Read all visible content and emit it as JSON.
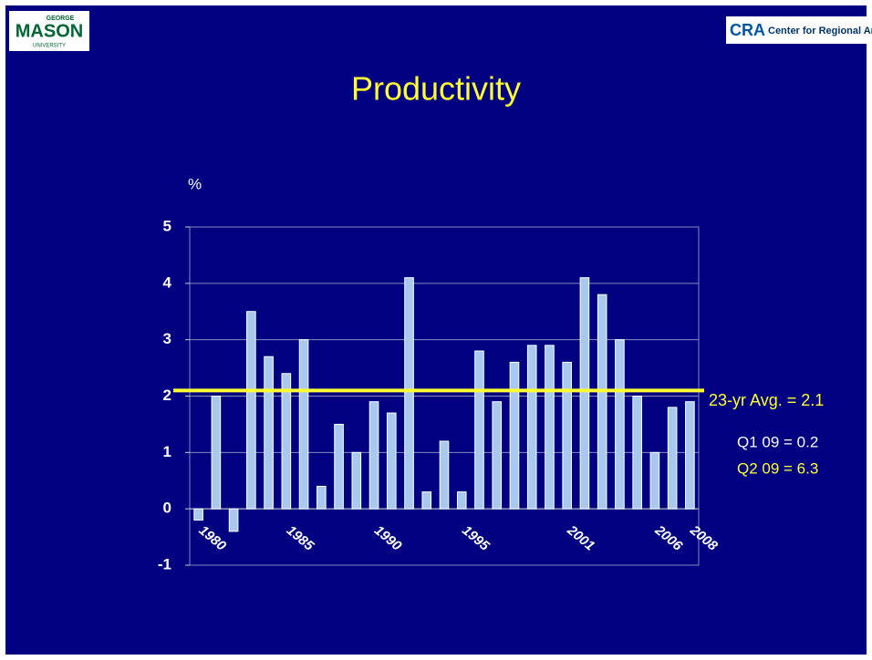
{
  "logos": {
    "left": {
      "top": "GEORGE",
      "main": "MASON",
      "bottom": "UNIVERSITY"
    },
    "right": {
      "mark": "CRA",
      "text": "Center for Regional Analy"
    }
  },
  "chart_data": {
    "type": "bar",
    "title": "Productivity",
    "y_label": "%",
    "categories": [
      "1980",
      null,
      null,
      null,
      null,
      "1985",
      null,
      null,
      null,
      null,
      "1990",
      null,
      null,
      null,
      null,
      "1995",
      null,
      null,
      null,
      null,
      null,
      "2001",
      null,
      null,
      null,
      null,
      "2006",
      null,
      "2008"
    ],
    "values": [
      -0.2,
      2.0,
      -0.4,
      3.5,
      2.7,
      2.4,
      3.0,
      0.4,
      1.5,
      1.0,
      1.9,
      1.7,
      4.1,
      0.3,
      1.2,
      0.3,
      2.8,
      1.9,
      2.6,
      2.9,
      2.9,
      2.6,
      4.1,
      3.8,
      3.0,
      2.0,
      1.0,
      1.8,
      1.9
    ],
    "color": "#a9c8ee",
    "ylim": [
      -1,
      5
    ],
    "yticks": [
      -1,
      0,
      1,
      2,
      3,
      4,
      5
    ],
    "grid": true,
    "average": {
      "value": 2.1,
      "label": "23-yr Avg. = 2.1",
      "color": "#ffff33"
    },
    "annotations": [
      {
        "text": "Q1 09 = 0.2",
        "color": "#ffffff"
      },
      {
        "text": "Q2 09 = 6.3",
        "color": "#ffff33"
      }
    ]
  }
}
